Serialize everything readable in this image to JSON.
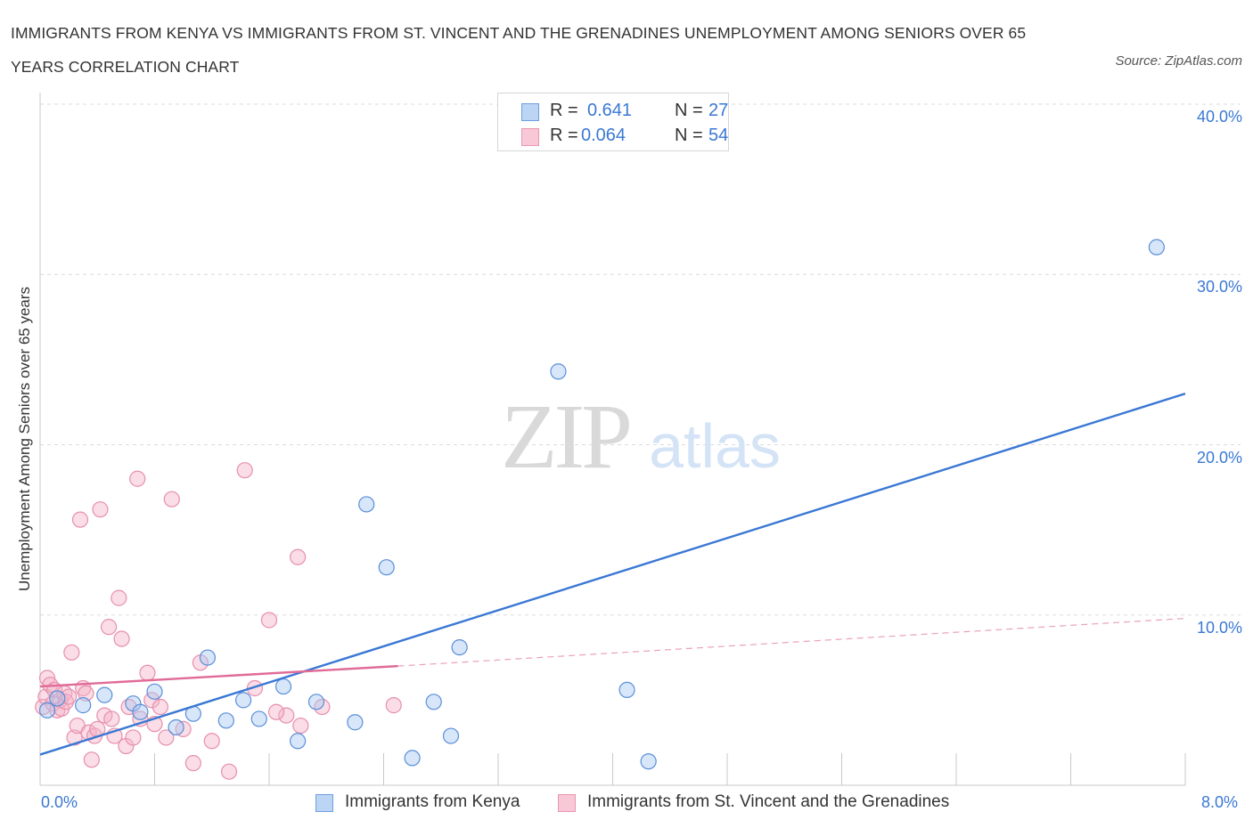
{
  "header": {
    "title": "IMMIGRANTS FROM KENYA VS IMMIGRANTS FROM ST. VINCENT AND THE GRENADINES UNEMPLOYMENT AMONG SENIORS OVER 65 YEARS CORRELATION CHART",
    "source": "Source: ZipAtlas.com"
  },
  "watermark": {
    "zip": "ZIP",
    "atlas": "atlas"
  },
  "colors": {
    "blue": "#3a78d4",
    "blue_fill": "#a9c8f2",
    "pink": "#e06b97",
    "pink_fill": "#f5b3c8",
    "grid": "#dcdcdc"
  },
  "legend_top": [
    {
      "r_label": "R =",
      "r_value": "0.641",
      "n_label": "N =",
      "n_value": "27"
    },
    {
      "r_label": "R =",
      "r_value": "0.064",
      "n_label": "N =",
      "n_value": "54"
    }
  ],
  "legend_bottom": [
    {
      "label": "Immigrants from Kenya"
    },
    {
      "label": "Immigrants from St. Vincent and the Grenadines"
    }
  ],
  "chart_data": {
    "type": "scatter",
    "title": "IMMIGRANTS FROM KENYA VS IMMIGRANTS FROM ST. VINCENT AND THE GRENADINES UNEMPLOYMENT AMONG SENIORS OVER 65 YEARS CORRELATION CHART",
    "xlabel": "",
    "ylabel": "Unemployment Among Seniors over 65 years",
    "xlim": [
      0,
      8
    ],
    "ylim": [
      0,
      40
    ],
    "x_tick_labels": [
      "0.0%",
      "8.0%"
    ],
    "y_tick_labels": [
      "10.0%",
      "20.0%",
      "30.0%",
      "40.0%"
    ],
    "y_ticks": [
      10,
      20,
      30,
      40
    ],
    "grid": true,
    "legend_placement": "bottom",
    "series": [
      {
        "name": "Immigrants from Kenya",
        "color": "#3a78d4",
        "R": 0.641,
        "N": 27,
        "trend": {
          "x": [
            0.0,
            8.0
          ],
          "y": [
            1.8,
            23.0
          ]
        },
        "points": [
          [
            0.05,
            4.4
          ],
          [
            0.12,
            5.1
          ],
          [
            0.3,
            4.7
          ],
          [
            0.45,
            5.3
          ],
          [
            0.65,
            4.8
          ],
          [
            0.7,
            4.3
          ],
          [
            0.8,
            5.5
          ],
          [
            0.95,
            3.4
          ],
          [
            1.07,
            4.2
          ],
          [
            1.17,
            7.5
          ],
          [
            1.3,
            3.8
          ],
          [
            1.42,
            5.0
          ],
          [
            1.53,
            3.9
          ],
          [
            1.7,
            5.8
          ],
          [
            1.8,
            2.6
          ],
          [
            1.93,
            4.9
          ],
          [
            2.2,
            3.7
          ],
          [
            2.28,
            16.5
          ],
          [
            2.42,
            12.8
          ],
          [
            2.6,
            1.6
          ],
          [
            2.75,
            4.9
          ],
          [
            2.87,
            2.9
          ],
          [
            2.93,
            8.1
          ],
          [
            3.62,
            24.3
          ],
          [
            4.1,
            5.6
          ],
          [
            4.25,
            1.4
          ],
          [
            7.8,
            31.6
          ]
        ]
      },
      {
        "name": "Immigrants from St. Vincent and the Grenadines",
        "color": "#e06b97",
        "R": 0.064,
        "N": 54,
        "trend": {
          "x": [
            0.0,
            2.5
          ],
          "y": [
            5.8,
            7.0
          ]
        },
        "trend_extrapolated": {
          "x": [
            2.5,
            8.0
          ],
          "y": [
            7.0,
            9.8
          ]
        },
        "points": [
          [
            0.02,
            4.6
          ],
          [
            0.04,
            5.2
          ],
          [
            0.05,
            6.3
          ],
          [
            0.07,
            5.9
          ],
          [
            0.09,
            4.8
          ],
          [
            0.1,
            5.6
          ],
          [
            0.12,
            4.4
          ],
          [
            0.14,
            5.0
          ],
          [
            0.15,
            4.5
          ],
          [
            0.17,
            5.4
          ],
          [
            0.18,
            4.9
          ],
          [
            0.2,
            5.2
          ],
          [
            0.22,
            7.8
          ],
          [
            0.24,
            2.8
          ],
          [
            0.26,
            3.5
          ],
          [
            0.28,
            15.6
          ],
          [
            0.3,
            5.7
          ],
          [
            0.32,
            5.4
          ],
          [
            0.34,
            3.1
          ],
          [
            0.36,
            1.5
          ],
          [
            0.38,
            2.9
          ],
          [
            0.4,
            3.3
          ],
          [
            0.42,
            16.2
          ],
          [
            0.45,
            4.1
          ],
          [
            0.48,
            9.3
          ],
          [
            0.5,
            3.9
          ],
          [
            0.52,
            2.9
          ],
          [
            0.55,
            11.0
          ],
          [
            0.57,
            8.6
          ],
          [
            0.6,
            2.3
          ],
          [
            0.62,
            4.6
          ],
          [
            0.65,
            2.8
          ],
          [
            0.68,
            18.0
          ],
          [
            0.7,
            3.9
          ],
          [
            0.75,
            6.6
          ],
          [
            0.78,
            5.0
          ],
          [
            0.8,
            3.6
          ],
          [
            0.84,
            4.6
          ],
          [
            0.88,
            2.8
          ],
          [
            0.92,
            16.8
          ],
          [
            1.0,
            3.3
          ],
          [
            1.07,
            1.3
          ],
          [
            1.12,
            7.2
          ],
          [
            1.2,
            2.6
          ],
          [
            1.32,
            0.8
          ],
          [
            1.43,
            18.5
          ],
          [
            1.5,
            5.7
          ],
          [
            1.6,
            9.7
          ],
          [
            1.72,
            4.1
          ],
          [
            1.65,
            4.3
          ],
          [
            1.8,
            13.4
          ],
          [
            1.82,
            3.5
          ],
          [
            1.97,
            4.6
          ],
          [
            2.47,
            4.7
          ]
        ]
      }
    ]
  }
}
